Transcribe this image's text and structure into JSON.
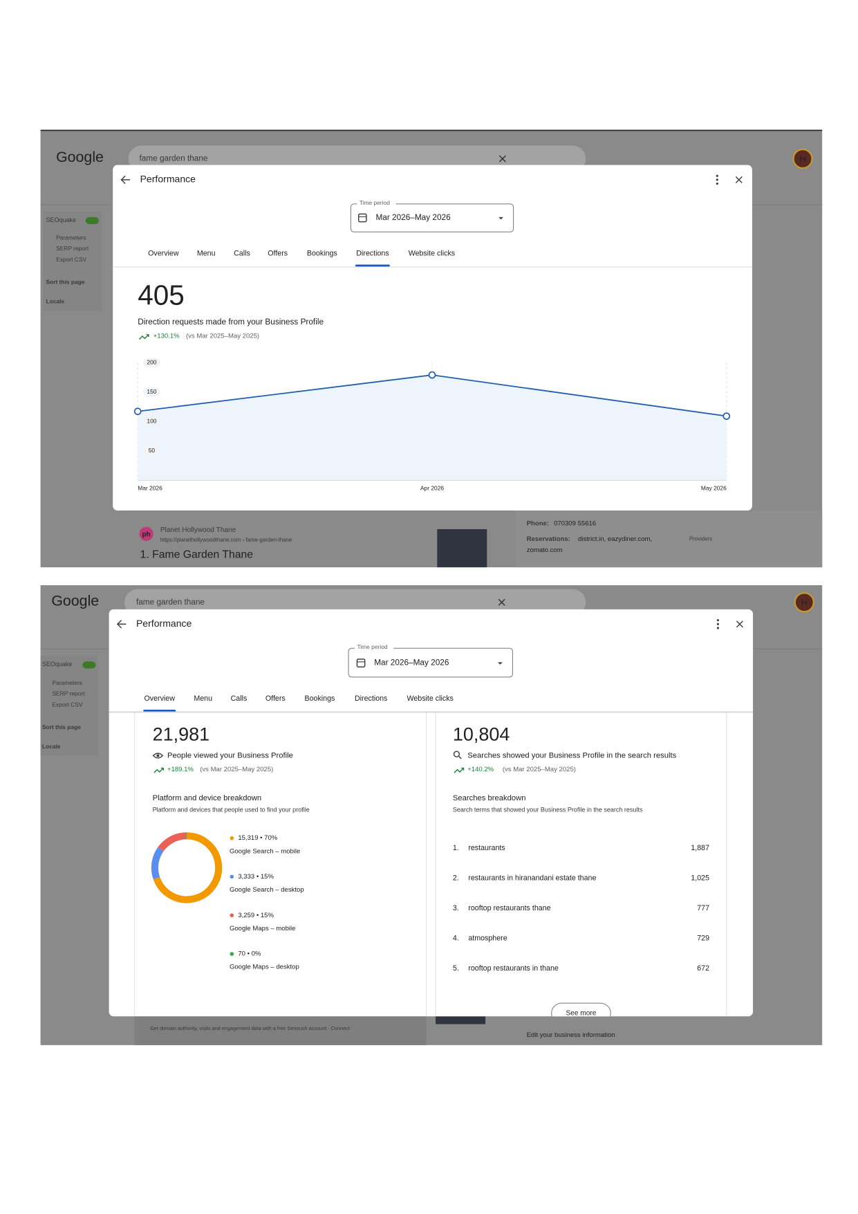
{
  "screens": [
    {
      "logo": "Google",
      "search_query": "fame garden thane",
      "avatar": "H",
      "sidebar": {
        "toggle": "SEOquake",
        "items": [
          "Parameters",
          "SERP report",
          "Export CSV"
        ],
        "sort": "Sort this page",
        "locale": "Locale"
      },
      "dialog": {
        "title": "Performance",
        "time_period_label": "Time period",
        "time_period": "Mar 2026–May 2026",
        "tabs": [
          "Overview",
          "Menu",
          "Calls",
          "Offers",
          "Bookings",
          "Directions",
          "Website clicks"
        ],
        "total": "405",
        "description": "Direction requests made from your Business Profile",
        "change": "+130.1%",
        "comparison": "(vs Mar 2025–May 2025)",
        "chart": {
          "type": "line",
          "x": [
            "Mar 2026",
            "Apr 2026",
            "May 2026"
          ],
          "values": [
            117,
            179,
            109
          ],
          "ylim": [
            0,
            200
          ],
          "yticks": [
            50,
            100,
            150,
            200
          ],
          "color": "#1f5fae",
          "fill": "#eef4fb"
        }
      },
      "results": {
        "site_logo": "ph",
        "site_name": "Planet Hollywood Thane",
        "url": "https://planethollywoodthane.com › fame-garden-thane",
        "title": "1. Fame Garden Thane",
        "phone_label": "Phone:",
        "phone": "070309 55616",
        "reservations_label": "Reservations:",
        "reservations": "district.in, eazydiner.com,",
        "reservations_more": "zomato.com",
        "providers": "Providers"
      }
    },
    {
      "logo": "Google",
      "search_query": "fame garden thane",
      "avatar": "H",
      "sidebar": {
        "toggle": "SEOquake",
        "items": [
          "Parameters",
          "SERP report",
          "Export CSV"
        ],
        "sort": "Sort this page",
        "locale": "Locale"
      },
      "dialog": {
        "title": "Performance",
        "time_period_label": "Time period",
        "time_period": "Mar 2026–May 2026",
        "tabs": [
          "Overview",
          "Menu",
          "Calls",
          "Offers",
          "Bookings",
          "Directions",
          "Website clicks"
        ],
        "cards": [
          {
            "total": "21,981",
            "description": "People viewed your Business Profile",
            "change": "+189.1%",
            "comparison": "(vs Mar 2025–May 2025)",
            "breakdown_title": "Platform and device breakdown",
            "breakdown_subtitle": "Platform and devices that people used to find your profile",
            "breakdown": {
              "type": "pie",
              "items": [
                {
                  "value": 15319,
                  "label": "15,319 • 70%",
                  "name": "Google Search – mobile",
                  "color": "#f29900"
                },
                {
                  "value": 3333,
                  "label": "3,333 • 15%",
                  "name": "Google Search – desktop",
                  "color": "#5b8def"
                },
                {
                  "value": 3259,
                  "label": "3,259 • 15%",
                  "name": "Google Maps – mobile",
                  "color": "#ea6158"
                },
                {
                  "value": 70,
                  "label": "70 • 0%",
                  "name": "Google Maps – desktop",
                  "color": "#34a853"
                }
              ]
            }
          },
          {
            "total": "10,804",
            "description": "Searches showed your Business Profile in the search results",
            "change": "+140.2%",
            "comparison": "(vs Mar 2025–May 2025)",
            "breakdown_title": "Searches breakdown",
            "breakdown_subtitle": "Search terms that showed your Business Profile in the search results",
            "terms": [
              {
                "rank": "1.",
                "term": "restaurants",
                "count": "1,887"
              },
              {
                "rank": "2.",
                "term": "restaurants in hiranandani estate thane",
                "count": "1,025"
              },
              {
                "rank": "3.",
                "term": "rooftop restaurants thane",
                "count": "777"
              },
              {
                "rank": "4.",
                "term": "atmosphere",
                "count": "729"
              },
              {
                "rank": "5.",
                "term": "rooftop restaurants in thane",
                "count": "672"
              }
            ],
            "see_more": "See more"
          }
        ]
      },
      "results": {
        "semrush": "Get domain authority, visits and engagement data with a free Semrush account · Connect",
        "edit": "Edit your business information"
      }
    }
  ]
}
